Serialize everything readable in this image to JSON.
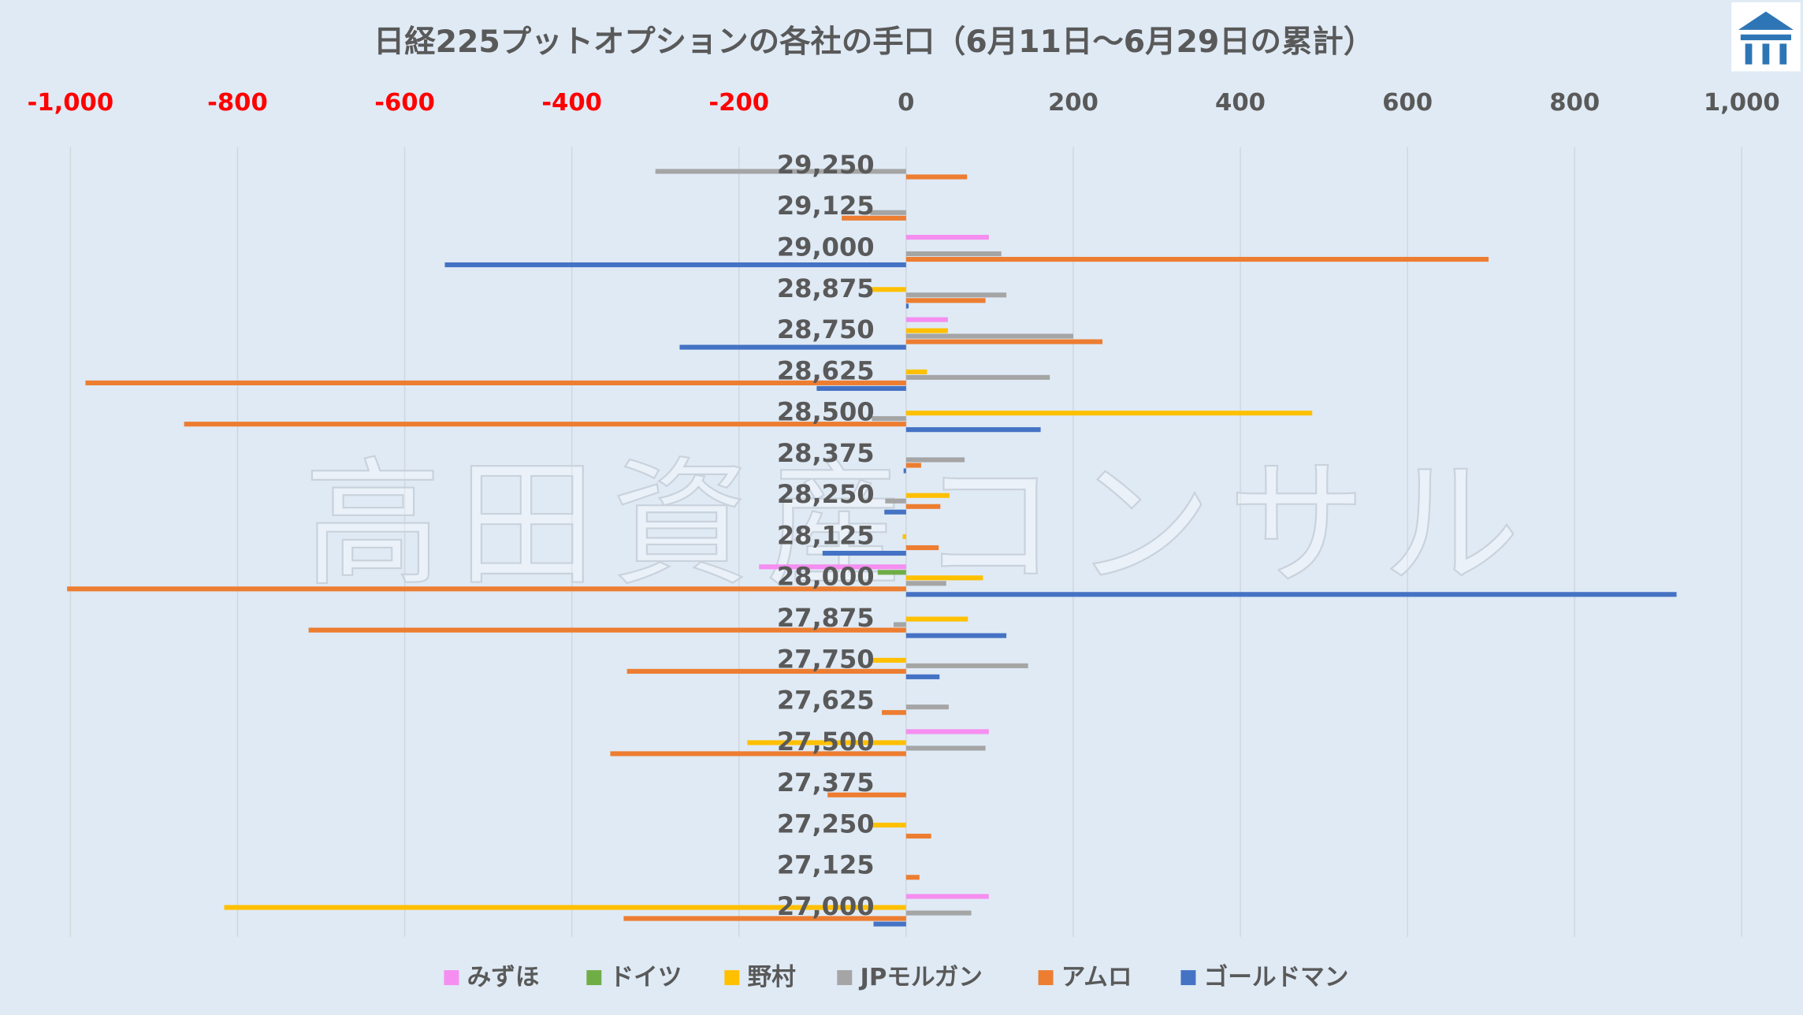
{
  "chart_data": {
    "type": "bar",
    "orientation": "horizontal",
    "title": "日経225プットオプションの各社の手口（6月11日～6月29日の累計）",
    "watermark": "高田資産コンサル",
    "categories": [
      "29,250",
      "29,125",
      "29,000",
      "28,875",
      "28,750",
      "28,625",
      "28,500",
      "28,375",
      "28,250",
      "28,125",
      "28,000",
      "27,875",
      "27,750",
      "27,625",
      "27,500",
      "27,375",
      "27,250",
      "27,125",
      "27,000"
    ],
    "series": [
      {
        "name": "みずほ",
        "color": "#f58ef0",
        "values": [
          0,
          0,
          99,
          0,
          50,
          0,
          0,
          0,
          0,
          0,
          -176,
          0,
          0,
          0,
          99,
          0,
          0,
          0,
          99
        ]
      },
      {
        "name": "ドイツ",
        "color": "#70ad47",
        "values": [
          0,
          0,
          0,
          0,
          0,
          0,
          0,
          0,
          0,
          0,
          -34,
          0,
          0,
          0,
          0,
          0,
          0,
          0,
          0
        ]
      },
      {
        "name": "野村",
        "color": "#ffc000",
        "values": [
          0,
          0,
          0,
          -45,
          50,
          25,
          486,
          0,
          52,
          -4,
          92,
          74,
          -43,
          0,
          -190,
          0,
          -45,
          0,
          -816
        ]
      },
      {
        "name": "JPモルガン",
        "color": "#a5a5a5",
        "values": [
          -300,
          -43,
          114,
          120,
          200,
          172,
          -41,
          70,
          -25,
          0,
          48,
          -15,
          146,
          51,
          95,
          0,
          0,
          0,
          78
        ]
      },
      {
        "name": "アムロ",
        "color": "#ed7d31",
        "values": [
          73,
          -77,
          697,
          95,
          235,
          -982,
          -864,
          18,
          41,
          39,
          -1004,
          -715,
          -334,
          -29,
          -354,
          -94,
          30,
          16,
          -338
        ]
      },
      {
        "name": "ゴールドマン",
        "color": "#4472c4",
        "values": [
          0,
          0,
          -552,
          3,
          -271,
          -107,
          161,
          -3,
          -26,
          -100,
          922,
          120,
          40,
          0,
          0,
          0,
          0,
          0,
          -39
        ]
      }
    ],
    "xlim": [
      -1000,
      1000
    ],
    "xticks": [
      {
        "value": -1000,
        "label": "-1,000"
      },
      -800,
      -600,
      -400,
      -200,
      0,
      200,
      400,
      600,
      800,
      {
        "value": 1000,
        "label": "1,000"
      }
    ],
    "negative_tick_color": "#ff0000",
    "tick_color": "#595959",
    "grid": true,
    "legend": "bottom"
  }
}
